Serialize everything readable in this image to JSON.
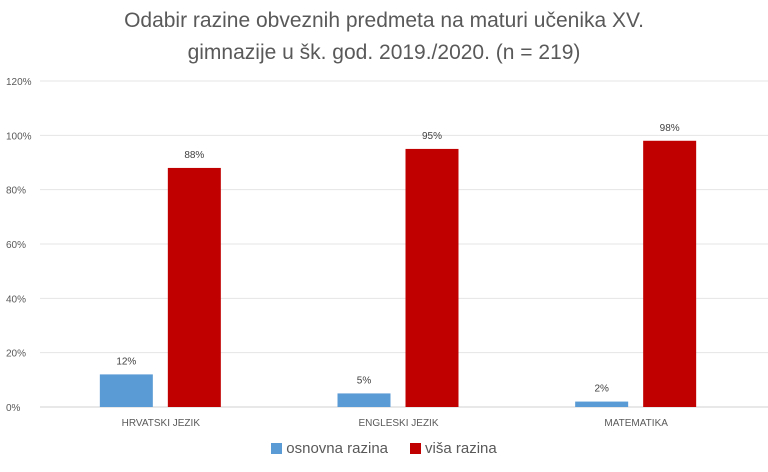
{
  "chart_data": {
    "type": "bar",
    "title_line1": "Odabir razine obveznih predmeta na maturi učenika XV.",
    "title_line2": "gimnazije u šk. god. 2019./2020. (n = 219)",
    "categories": [
      "HRVATSKI JEZIK",
      "ENGLESKI JEZIK",
      "MATEMATIKA"
    ],
    "series": [
      {
        "name": "osnovna razina",
        "color": "#5B9BD5",
        "values": [
          12,
          5,
          2
        ],
        "labels": [
          "12%",
          "5%",
          "2%"
        ]
      },
      {
        "name": "viša razina",
        "color": "#C00000",
        "values": [
          88,
          95,
          98
        ],
        "labels": [
          "88%",
          "95%",
          "98%"
        ]
      }
    ],
    "yticks": [
      "0%",
      "20%",
      "40%",
      "60%",
      "80%",
      "100%",
      "120%"
    ],
    "ylim": [
      0,
      120
    ],
    "grid": true,
    "legend_position": "bottom",
    "xlabel": "",
    "ylabel": ""
  }
}
